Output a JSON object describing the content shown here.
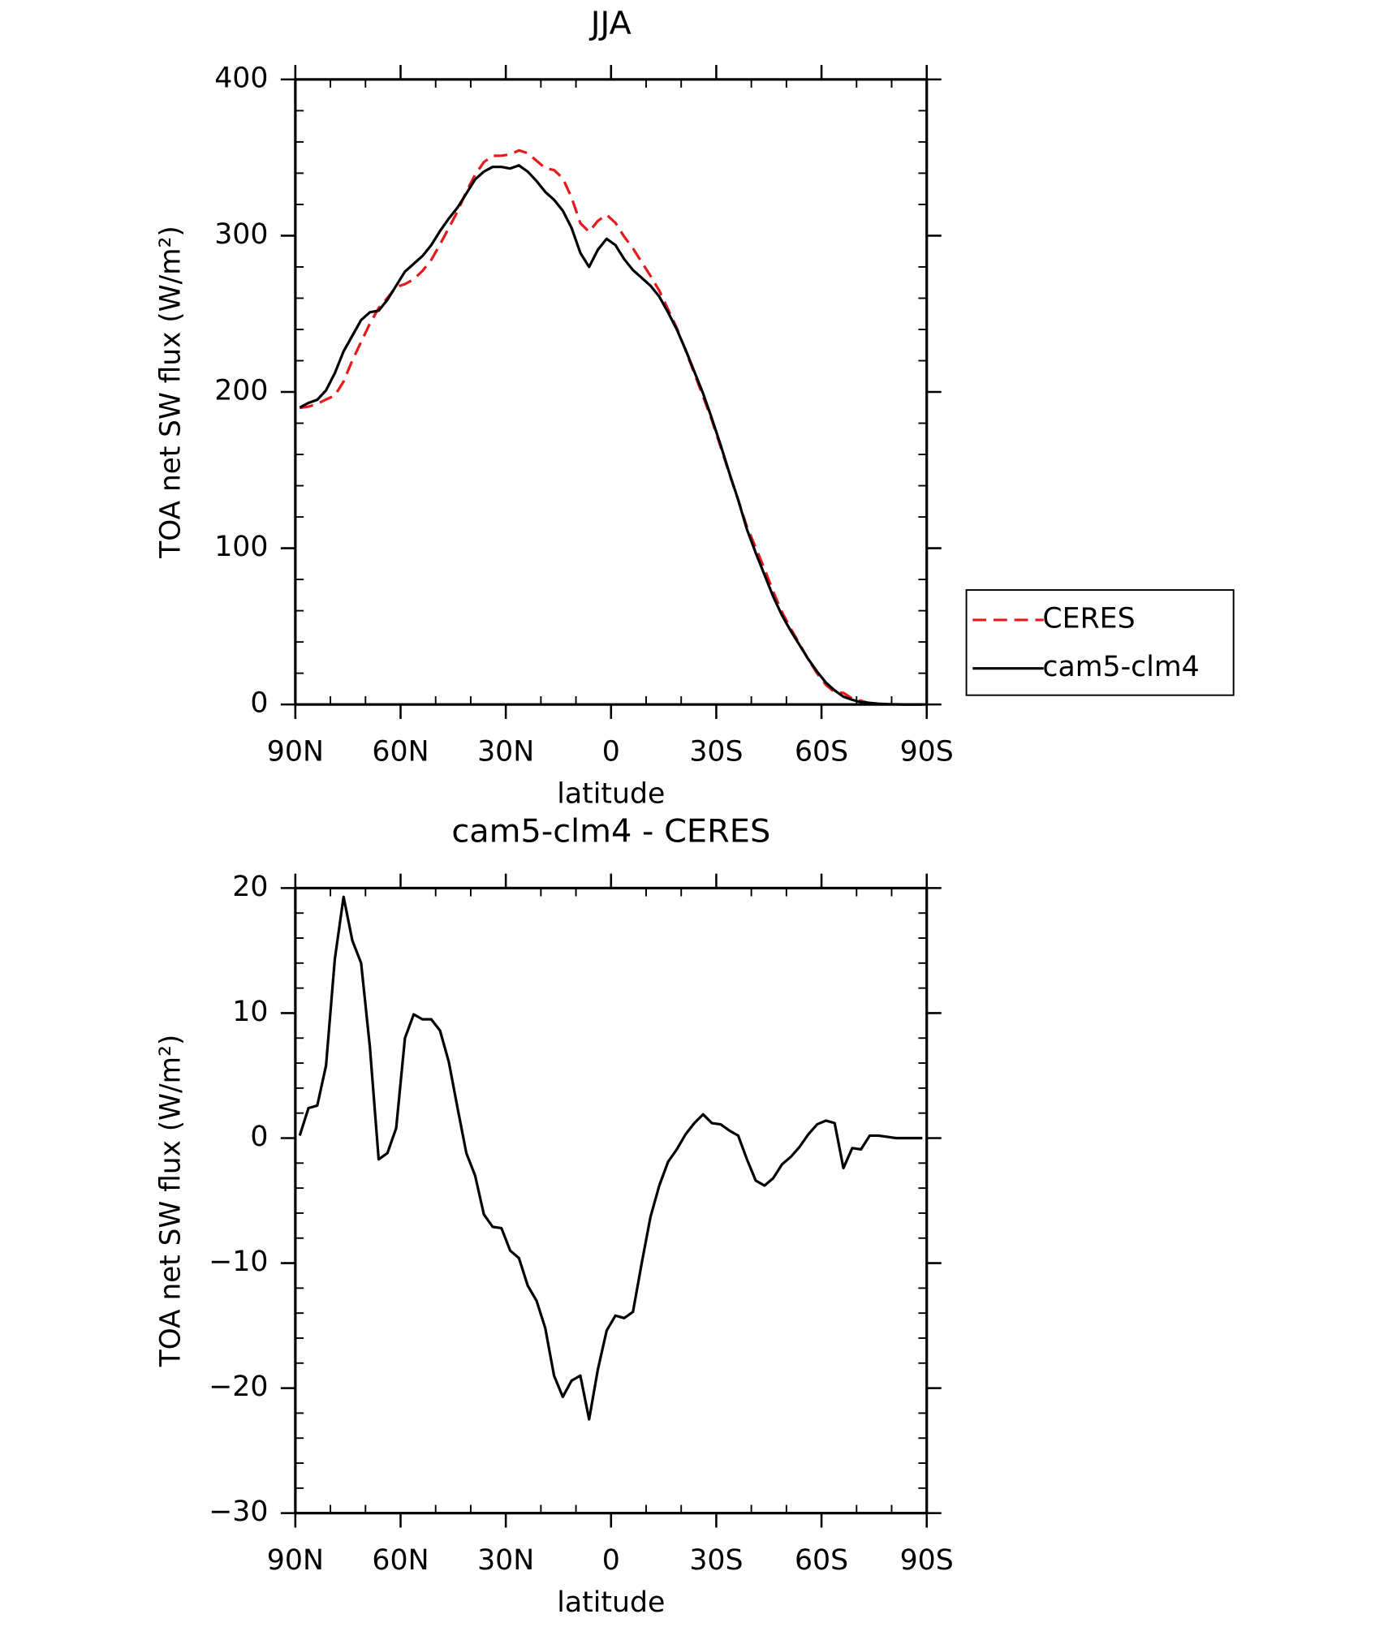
{
  "chart_data": [
    {
      "type": "line",
      "title": "JJA",
      "xlabel": "latitude",
      "ylabel": "TOA net SW flux (W/m²)",
      "xlim": [
        90,
        -90
      ],
      "xticks": [
        {
          "value": 90,
          "label": "90N"
        },
        {
          "value": 60,
          "label": "60N"
        },
        {
          "value": 30,
          "label": "30N"
        },
        0,
        {
          "value": -30,
          "label": "30S"
        },
        {
          "value": -60,
          "label": "60S"
        },
        {
          "value": -90,
          "label": "90S"
        }
      ],
      "xminorticks": [
        80,
        70,
        50,
        40,
        20,
        10,
        -10,
        -20,
        -40,
        -50,
        -70,
        -80
      ],
      "ylim": [
        0,
        400
      ],
      "yticks": [
        0,
        100,
        200,
        300,
        400
      ],
      "yminorticks": [
        20,
        40,
        60,
        80,
        120,
        140,
        160,
        180,
        220,
        240,
        260,
        280,
        320,
        340,
        360,
        380
      ],
      "legend": "right",
      "x": [
        88.75,
        86.25,
        83.75,
        81.25,
        78.75,
        76.25,
        73.75,
        71.25,
        68.75,
        66.25,
        63.75,
        61.25,
        58.75,
        56.25,
        53.75,
        51.25,
        48.75,
        46.25,
        43.75,
        41.25,
        38.75,
        36.25,
        33.75,
        31.25,
        28.75,
        26.25,
        23.75,
        21.25,
        18.75,
        16.25,
        13.75,
        11.25,
        8.75,
        6.25,
        3.75,
        1.25,
        -1.25,
        -3.75,
        -6.25,
        -8.75,
        -11.25,
        -13.75,
        -16.25,
        -18.75,
        -21.25,
        -23.75,
        -26.25,
        -28.75,
        -31.25,
        -33.75,
        -36.25,
        -38.75,
        -41.25,
        -43.75,
        -46.25,
        -48.75,
        -51.25,
        -53.75,
        -56.25,
        -58.75,
        -61.25,
        -63.75,
        -66.25,
        -68.75,
        -71.25,
        -73.75,
        -76.25,
        -78.75,
        -81.25,
        -83.75,
        -86.25,
        -88.75
      ],
      "series": [
        {
          "name": "CERES",
          "color": "#e41a1c",
          "dash": true,
          "values": [
            189.8,
            190.6,
            192.4,
            195.2,
            197.7,
            206.7,
            220.2,
            232,
            243.7,
            253.7,
            260.2,
            267.2,
            269,
            272.1,
            277.5,
            284.5,
            294.4,
            304.9,
            315.6,
            328.2,
            339,
            347.1,
            351.1,
            351.2,
            352,
            354.6,
            352.8,
            348,
            343.2,
            342,
            336.7,
            324.4,
            308,
            302.5,
            309.5,
            313.4,
            308.2,
            299.4,
            291.9,
            283,
            274.3,
            264.8,
            252.9,
            240.9,
            226.7,
            211.8,
            197.1,
            181.8,
            164.9,
            147.4,
            130.8,
            113.7,
            100.4,
            86.8,
            72.2,
            59.1,
            48.5,
            38.7,
            28.7,
            19.9,
            12.6,
            7.8,
            7.4,
            3.8,
            2.4,
            0.8,
            0.3,
            0.1,
            0.1,
            0,
            0,
            0
          ]
        },
        {
          "name": "cam5-clm4",
          "color": "#000000",
          "dash": false,
          "values": [
            190,
            193,
            195,
            201,
            212,
            226,
            236,
            246,
            251,
            252,
            259,
            268,
            277,
            282,
            287,
            294,
            303,
            311,
            318,
            327,
            336,
            341,
            344,
            344,
            343,
            345,
            341,
            335,
            328,
            323,
            316,
            305,
            289,
            280,
            291,
            298,
            294,
            285,
            278,
            273,
            268,
            261,
            251,
            240,
            227,
            213,
            199,
            183,
            166,
            148,
            131,
            112,
            97,
            83,
            69,
            57,
            47,
            38,
            29,
            21,
            14,
            9,
            5,
            3,
            1.5,
            1,
            0.5,
            0.2,
            0.1,
            0,
            0,
            0
          ]
        }
      ]
    },
    {
      "type": "line",
      "title": "cam5-clm4 - CERES",
      "xlabel": "latitude",
      "ylabel": "TOA net SW flux (W/m²)",
      "xlim": [
        90,
        -90
      ],
      "xticks": [
        {
          "value": 90,
          "label": "90N"
        },
        {
          "value": 60,
          "label": "60N"
        },
        {
          "value": 30,
          "label": "30N"
        },
        0,
        {
          "value": -30,
          "label": "30S"
        },
        {
          "value": -60,
          "label": "60S"
        },
        {
          "value": -90,
          "label": "90S"
        }
      ],
      "xminorticks": [
        80,
        70,
        50,
        40,
        20,
        10,
        -10,
        -20,
        -40,
        -50,
        -70,
        -80
      ],
      "ylim": [
        -30,
        20
      ],
      "yticks": [
        {
          "value": -30,
          "label": "−30"
        },
        {
          "value": -20,
          "label": "−20"
        },
        {
          "value": -10,
          "label": "−10"
        },
        0,
        10,
        20
      ],
      "yminorticks": [
        -28,
        -26,
        -24,
        -22,
        -18,
        -16,
        -14,
        -12,
        -8,
        -6,
        -4,
        -2,
        2,
        4,
        6,
        8,
        12,
        14,
        16,
        18
      ],
      "color": "#000000",
      "x": [
        88.75,
        86.25,
        83.75,
        81.25,
        78.75,
        76.25,
        73.75,
        71.25,
        68.75,
        66.25,
        63.75,
        61.25,
        58.75,
        56.25,
        53.75,
        51.25,
        48.75,
        46.25,
        43.75,
        41.25,
        38.75,
        36.25,
        33.75,
        31.25,
        28.75,
        26.25,
        23.75,
        21.25,
        18.75,
        16.25,
        13.75,
        11.25,
        8.75,
        6.25,
        3.75,
        1.25,
        -1.25,
        -3.75,
        -6.25,
        -8.75,
        -11.25,
        -13.75,
        -16.25,
        -18.75,
        -21.25,
        -23.75,
        -26.25,
        -28.75,
        -31.25,
        -33.75,
        -36.25,
        -38.75,
        -41.25,
        -43.75,
        -46.25,
        -48.75,
        -51.25,
        -53.75,
        -56.25,
        -58.75,
        -61.25,
        -63.75,
        -66.25,
        -68.75,
        -71.25,
        -73.75,
        -76.25,
        -78.75,
        -81.25,
        -83.75,
        -86.25,
        -88.75
      ],
      "values": [
        0.2,
        2.4,
        2.6,
        5.8,
        14.3,
        19.3,
        15.8,
        14,
        7.3,
        -1.7,
        -1.2,
        0.8,
        8,
        9.9,
        9.5,
        9.5,
        8.6,
        6.1,
        2.4,
        -1.2,
        -3,
        -6.1,
        -7.1,
        -7.2,
        -9,
        -9.6,
        -11.8,
        -13,
        -15.2,
        -19,
        -20.7,
        -19.4,
        -19,
        -22.5,
        -18.5,
        -15.4,
        -14.2,
        -14.4,
        -13.9,
        -10,
        -6.3,
        -3.8,
        -1.9,
        -0.9,
        0.3,
        1.2,
        1.9,
        1.2,
        1.1,
        0.6,
        0.2,
        -1.7,
        -3.4,
        -3.8,
        -3.2,
        -2.1,
        -1.5,
        -0.7,
        0.3,
        1.1,
        1.4,
        1.2,
        -2.4,
        -0.8,
        -0.9,
        0.2,
        0.2,
        0.1,
        0,
        0,
        0,
        0
      ]
    }
  ]
}
